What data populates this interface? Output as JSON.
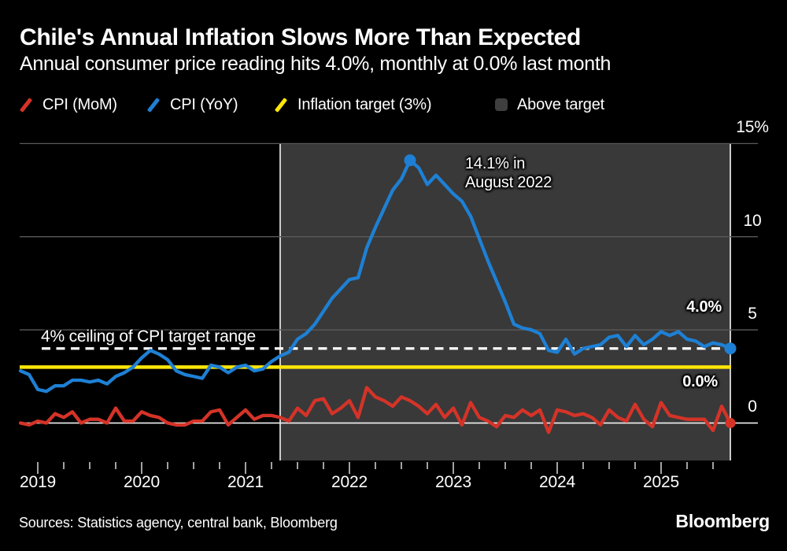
{
  "header": {
    "title": "Chile's Annual Inflation Slows More Than Expected",
    "subtitle": "Annual consumer price reading hits 4.0%, monthly at 0.0% last month"
  },
  "legend": {
    "items": [
      {
        "label": "CPI (MoM)",
        "marker": "slash",
        "color": "#d53328"
      },
      {
        "label": "CPI (YoY)",
        "marker": "slash",
        "color": "#1e80d4"
      },
      {
        "label": "Inflation target (3%)",
        "marker": "slash",
        "color": "#ffe608"
      },
      {
        "label": "Above target",
        "marker": "square",
        "color": "#3f3f3f"
      }
    ]
  },
  "chart_data": {
    "type": "line",
    "frequency": "monthly",
    "x_start": "2018-11",
    "x_end": "2025-09",
    "x_year_ticks": [
      "2019",
      "2020",
      "2021",
      "2022",
      "2023",
      "2024",
      "2025"
    ],
    "y_axis": {
      "range": [
        -2,
        15
      ],
      "ticks": [
        {
          "value": 0,
          "label": "0"
        },
        {
          "value": 5,
          "label": "5"
        },
        {
          "value": 10,
          "label": "10"
        },
        {
          "value": 15,
          "label": "15%"
        }
      ]
    },
    "series": [
      {
        "name": "CPI (MoM)",
        "color": "#d53328",
        "unit": "% m/m",
        "end_dot": true,
        "values": [
          0.0,
          -0.1,
          0.1,
          0.0,
          0.5,
          0.3,
          0.6,
          0.0,
          0.2,
          0.2,
          0.0,
          0.8,
          0.1,
          0.1,
          0.6,
          0.4,
          0.3,
          0.0,
          -0.1,
          -0.1,
          0.1,
          0.1,
          0.6,
          0.7,
          -0.1,
          0.3,
          0.7,
          0.2,
          0.4,
          0.4,
          0.3,
          0.1,
          0.8,
          0.4,
          1.2,
          1.3,
          0.5,
          0.8,
          1.2,
          0.3,
          1.9,
          1.4,
          1.2,
          0.9,
          1.4,
          1.2,
          0.9,
          0.5,
          1.0,
          0.3,
          0.8,
          -0.1,
          1.1,
          0.3,
          0.1,
          -0.2,
          0.4,
          0.3,
          0.7,
          0.4,
          0.7,
          -0.5,
          0.7,
          0.6,
          0.4,
          0.5,
          0.3,
          -0.1,
          0.7,
          0.3,
          0.1,
          1.0,
          0.2,
          -0.2,
          1.1,
          0.4,
          0.3,
          0.2,
          0.2,
          0.2,
          -0.4,
          0.9,
          0.0
        ]
      },
      {
        "name": "CPI (YoY)",
        "color": "#1e80d4",
        "unit": "% y/y",
        "end_dot": true,
        "peak_dot_index": 45,
        "values": [
          2.8,
          2.6,
          1.8,
          1.7,
          2.0,
          2.0,
          2.3,
          2.3,
          2.2,
          2.3,
          2.1,
          2.5,
          2.7,
          3.0,
          3.5,
          3.9,
          3.7,
          3.4,
          2.8,
          2.6,
          2.5,
          2.4,
          3.1,
          3.0,
          2.7,
          3.0,
          3.1,
          2.8,
          2.9,
          3.3,
          3.6,
          3.8,
          4.5,
          4.8,
          5.3,
          6.0,
          6.7,
          7.2,
          7.7,
          7.8,
          9.4,
          10.5,
          11.5,
          12.5,
          13.1,
          14.1,
          13.7,
          12.8,
          13.3,
          12.8,
          12.3,
          11.9,
          11.1,
          9.9,
          8.7,
          7.6,
          6.5,
          5.3,
          5.1,
          5.0,
          4.8,
          3.9,
          3.8,
          4.5,
          3.7,
          4.0,
          4.1,
          4.2,
          4.6,
          4.7,
          4.1,
          4.7,
          4.2,
          4.5,
          4.9,
          4.7,
          4.9,
          4.5,
          4.4,
          4.1,
          4.3,
          4.2,
          4.0
        ]
      }
    ],
    "reference_lines": [
      {
        "name": "Inflation target (3%)",
        "value": 3,
        "style": "solid",
        "color": "#ffe608"
      },
      {
        "name": "4% ceiling of CPI target range",
        "value": 4,
        "style": "dashed",
        "color": "#ffffff"
      }
    ],
    "above_target_band": {
      "label": "Above target",
      "color": "#393939",
      "start": "2021-05",
      "end": "2025-09"
    },
    "annotations": {
      "peak": {
        "line1": "14.1% in",
        "line2": "August 2022"
      },
      "ceiling": "4% ceiling of CPI target range",
      "yoy_end": "4.0%",
      "mom_end": "0.0%"
    }
  },
  "footer": {
    "sources": "Sources: Statistics agency, central bank, Bloomberg",
    "logo": "Bloomberg"
  },
  "colors": {
    "background": "#000000",
    "mom_red": "#d53328",
    "yoy_blue": "#1e80d4",
    "target_yellow": "#ffe608",
    "band_gray": "#393939",
    "gridline_gray": "#5a5a5a",
    "zero_line": "#f2f2f2",
    "tick_color": "#d8d8d8",
    "text_white": "#ffffff"
  }
}
